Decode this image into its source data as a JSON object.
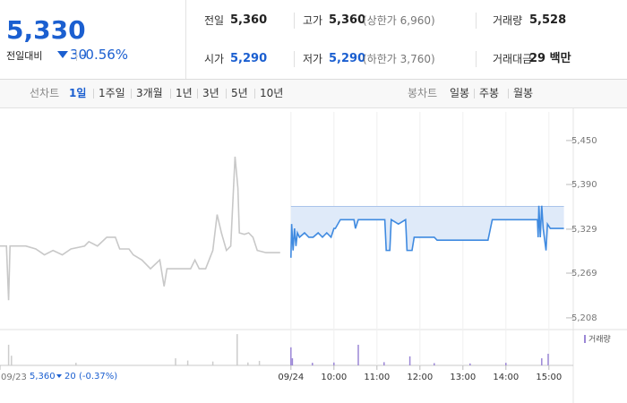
{
  "header": {
    "price": "5,330",
    "change_label": "전일대비",
    "change": "30",
    "change_pct": "-0.56%",
    "color": "#1b5fd0"
  },
  "stats": [
    {
      "label": "전일",
      "value": "5,360"
    },
    {
      "label": "고가",
      "value": "5,360",
      "note": "(상한가 6,960)"
    },
    {
      "label": "거래량",
      "value": "5,528"
    },
    {
      "label": "시가",
      "value": "5,290",
      "color": "#1b5fd0"
    },
    {
      "label": "저가",
      "value": "5,290",
      "color": "#1b5fd0",
      "note": "(하한가 3,760)"
    },
    {
      "label": "거래대금",
      "value": "29 백만"
    }
  ],
  "tabs": {
    "line_label": "선차트",
    "line": [
      "1일",
      "1주일",
      "3개월",
      "1년",
      "3년",
      "5년",
      "10년"
    ],
    "active": 0,
    "candle_label": "봉차트",
    "candle": [
      "일봉",
      "주봉",
      "월봉"
    ]
  },
  "chart_data": {
    "type": "line",
    "xlim": [
      -406,
      394
    ],
    "ylim": [
      5192,
      5489
    ],
    "yticks": [
      {
        "value": 5450,
        "label": "5,450"
      },
      {
        "value": 5390,
        "label": "5,390"
      },
      {
        "value": 5329,
        "label": "5,329"
      },
      {
        "value": 5269,
        "label": "5,269"
      },
      {
        "value": 5208,
        "label": "5,208"
      }
    ],
    "xticks": [
      {
        "value": -406,
        "label": "09/23"
      },
      {
        "value": 0,
        "label": "09/24"
      },
      {
        "value": 60,
        "label": "10:00"
      },
      {
        "value": 120,
        "label": "11:00"
      },
      {
        "value": 180,
        "label": "12:00"
      },
      {
        "value": 240,
        "label": "13:00"
      },
      {
        "value": 300,
        "label": "14:00"
      },
      {
        "value": 360,
        "label": "15:00"
      }
    ],
    "grid": true,
    "baseline": 5360,
    "series": [
      {
        "color": "#c8c8c8",
        "x": [
          -406,
          -397,
          -394,
          -392,
          -370,
          -356,
          -344,
          -332,
          -319,
          -307,
          -288,
          -282,
          -270,
          -257,
          -251,
          -245,
          -239,
          -226,
          -220,
          -208,
          -196,
          -183,
          -177,
          -173,
          -158,
          -140,
          -134,
          -128,
          -119,
          -109,
          -103,
          -97,
          -90,
          -84,
          -78,
          -74,
          -72,
          -65,
          -59,
          -53,
          -47,
          -35,
          -15
        ],
        "values": [
          5306,
          5306,
          5232,
          5306,
          5306,
          5302,
          5294,
          5300,
          5294,
          5302,
          5306,
          5312,
          5306,
          5318,
          5318,
          5318,
          5302,
          5302,
          5294,
          5287,
          5275,
          5287,
          5251,
          5275,
          5275,
          5275,
          5287,
          5275,
          5275,
          5300,
          5349,
          5324,
          5300,
          5306,
          5428,
          5385,
          5324,
          5322,
          5324,
          5318,
          5300,
          5297,
          5297
        ]
      },
      {
        "color": "#3f8ae0",
        "fill": "#dfeaf9",
        "x": [
          0,
          1,
          3,
          5,
          7,
          9,
          12,
          19,
          25,
          31,
          38,
          44,
          50,
          56,
          60,
          62,
          69,
          88,
          90,
          94,
          131,
          133,
          138,
          140,
          150,
          160,
          162,
          169,
          172,
          175,
          200,
          204,
          275,
          281,
          344,
          345,
          346,
          348,
          350,
          352,
          356,
          358,
          362,
          381
        ],
        "values": [
          5290,
          5336,
          5300,
          5330,
          5306,
          5324,
          5318,
          5324,
          5318,
          5318,
          5324,
          5318,
          5324,
          5318,
          5330,
          5330,
          5342,
          5342,
          5330,
          5342,
          5342,
          5300,
          5300,
          5342,
          5336,
          5342,
          5300,
          5300,
          5318,
          5318,
          5318,
          5314,
          5314,
          5342,
          5342,
          5318,
          5361,
          5318,
          5361,
          5330,
          5300,
          5336,
          5330,
          5330
        ]
      }
    ],
    "volume": {
      "name": "거래량",
      "ylim": [
        0,
        1000
      ],
      "legend_color": "#9b87d6",
      "series": [
        {
          "color": "#cccccc",
          "x": [
            -394,
            -390,
            -300,
            -161,
            -144,
            -109,
            -75,
            -60,
            -44
          ],
          "values": [
            640,
            300,
            80,
            220,
            150,
            120,
            970,
            90,
            140
          ]
        },
        {
          "color": "#9b87d6",
          "x": [
            0,
            2,
            30,
            60,
            94,
            130,
            166,
            200,
            250,
            300,
            350,
            359
          ],
          "values": [
            560,
            220,
            80,
            90,
            640,
            100,
            280,
            70,
            60,
            80,
            220,
            360
          ]
        }
      ]
    }
  },
  "footer": {
    "price": "5,360",
    "change": "20",
    "change_pct": "(-0.37%)",
    "color": "#1b5fd0"
  }
}
